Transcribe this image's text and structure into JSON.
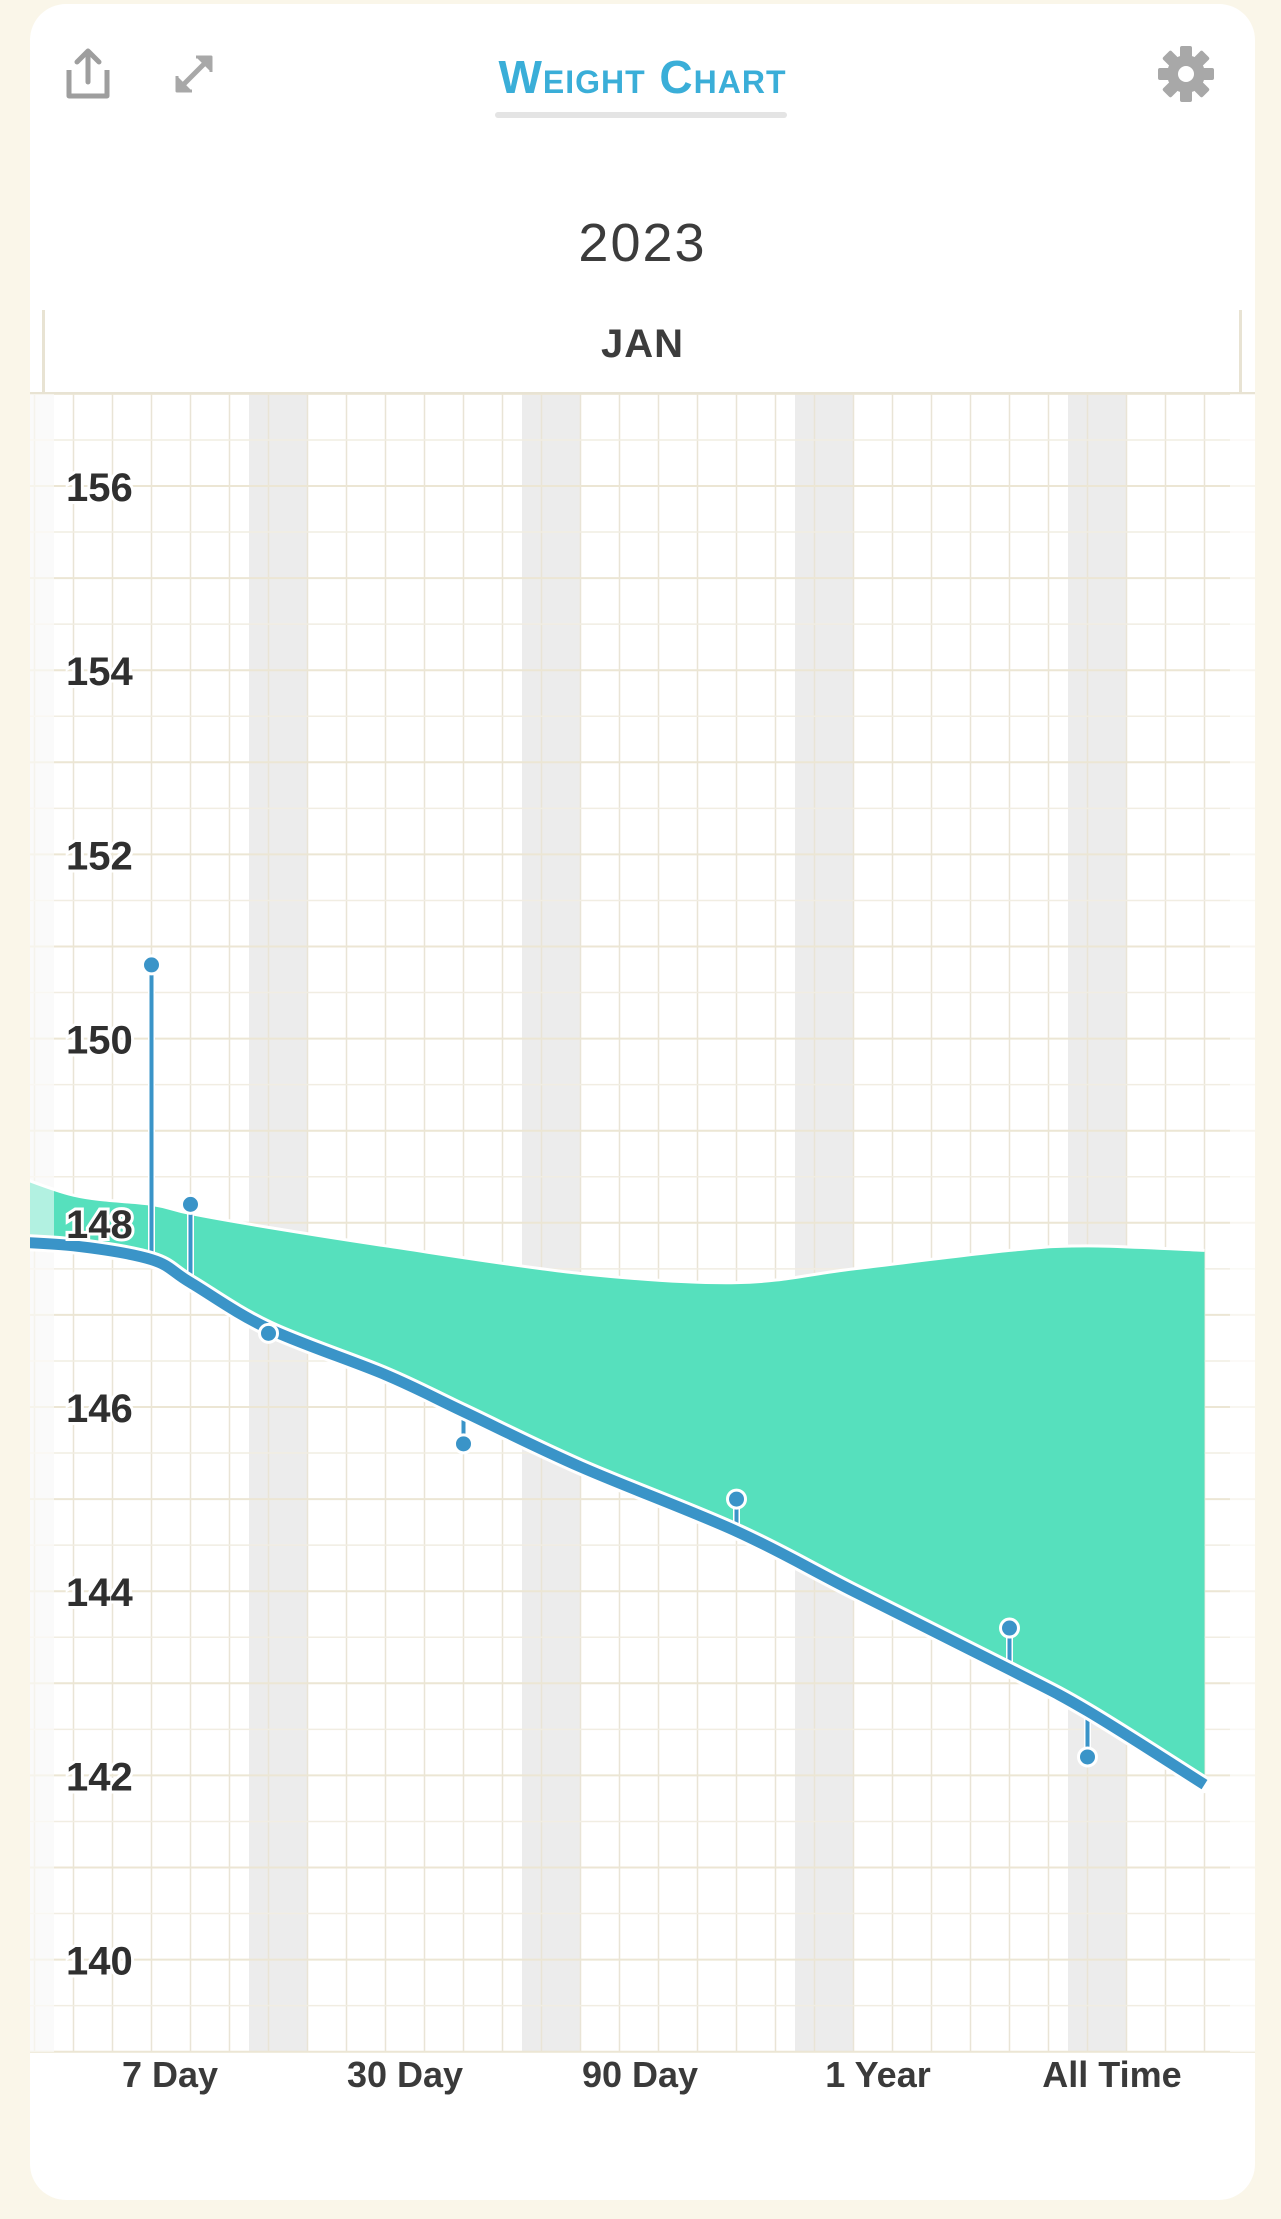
{
  "header": {
    "title": "Weight Chart",
    "share_icon": "share-icon",
    "expand_icon": "expand-icon",
    "settings_icon": "gear-icon"
  },
  "period": {
    "year": "2023",
    "month": "JAN"
  },
  "ranges": [
    "7 Day",
    "30 Day",
    "90 Day",
    "1 Year",
    "All Time"
  ],
  "colors": {
    "accent": "#3aaed8",
    "trend_line": "#3a94c8",
    "band_fill": "#56e0bd",
    "weekend_shade": "#ececec"
  },
  "chart_data": {
    "type": "line",
    "title": "",
    "xlabel": "",
    "ylabel": "",
    "ylim": [
      138.9,
      157
    ],
    "yticks": [
      140,
      142,
      144,
      146,
      148,
      150,
      152,
      154,
      156
    ],
    "grid": true,
    "x_range": [
      1,
      31
    ],
    "series": [
      {
        "role": "weigh-ins",
        "x": [
          4,
          5,
          7,
          12,
          19,
          26,
          28
        ],
        "values": [
          150.8,
          148.2,
          146.8,
          145.6,
          145.0,
          143.6,
          142.2
        ]
      },
      {
        "role": "trend",
        "x": [
          0,
          2,
          4,
          5,
          7,
          10,
          12,
          15,
          19,
          22,
          26,
          28,
          31
        ],
        "values": [
          147.8,
          147.75,
          147.6,
          147.35,
          146.85,
          146.35,
          145.95,
          145.35,
          144.65,
          144.0,
          143.15,
          142.7,
          141.9
        ]
      },
      {
        "role": "target-band",
        "x": [
          0,
          2,
          4,
          5,
          7,
          10,
          15,
          19,
          22,
          26,
          28,
          31
        ],
        "values": [
          148.6,
          148.3,
          148.2,
          148.1,
          147.95,
          147.75,
          147.45,
          147.35,
          147.5,
          147.7,
          147.75,
          147.7
        ]
      }
    ]
  }
}
